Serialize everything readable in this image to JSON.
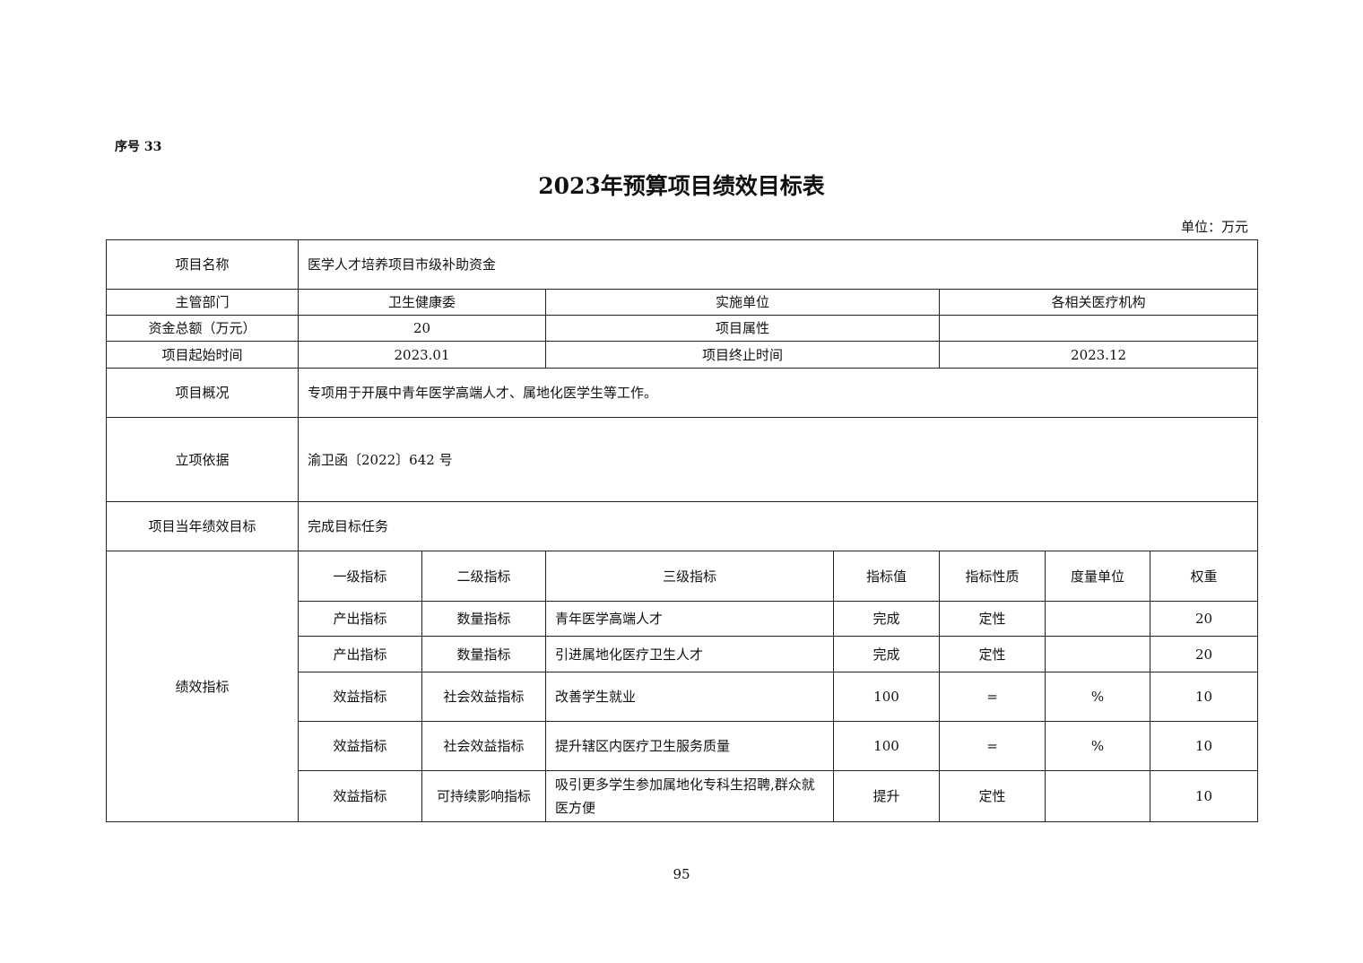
{
  "serial": "序号 33",
  "title": "2023年预算项目绩效目标表",
  "unit": "单位：万元",
  "info": {
    "name_label": "项目名称",
    "name": "医学人才培养项目市级补助资金",
    "dept_label": "主管部门",
    "dept": "卫生健康委",
    "impl_label": "实施单位",
    "impl": "各相关医疗机构",
    "fund_label": "资金总额（万元）",
    "fund": "20",
    "attr_label": "项目属性",
    "attr": "",
    "start_label": "项目起始时间",
    "start": "2023.01",
    "end_label": "项目终止时间",
    "end": "2023.12",
    "overview_label": "项目概况",
    "overview": "专项用于开展中青年医学高端人才、属地化医学生等工作。",
    "basis_label": "立项依据",
    "basis": "渝卫函〔2022〕642 号",
    "goal_label": "项目当年绩效目标",
    "goal": "完成目标任务"
  },
  "indicators": {
    "label": "绩效指标",
    "headers": [
      "一级指标",
      "二级指标",
      "三级指标",
      "指标值",
      "指标性质",
      "度量单位",
      "权重"
    ],
    "rows": [
      [
        "产出指标",
        "数量指标",
        "青年医学高端人才",
        "完成",
        "定性",
        "",
        "20"
      ],
      [
        "产出指标",
        "数量指标",
        "引进属地化医疗卫生人才",
        "完成",
        "定性",
        "",
        "20"
      ],
      [
        "效益指标",
        "社会效益指标",
        "改善学生就业",
        "100",
        "=",
        "%",
        "10"
      ],
      [
        "效益指标",
        "社会效益指标",
        "提升辖区内医疗卫生服务质量",
        "100",
        "=",
        "%",
        "10"
      ],
      [
        "效益指标",
        "可持续影响指标",
        "吸引更多学生参加属地化专科生招聘,群众就医方便",
        "提升",
        "定性",
        "",
        "10"
      ]
    ]
  },
  "page_number": "95"
}
